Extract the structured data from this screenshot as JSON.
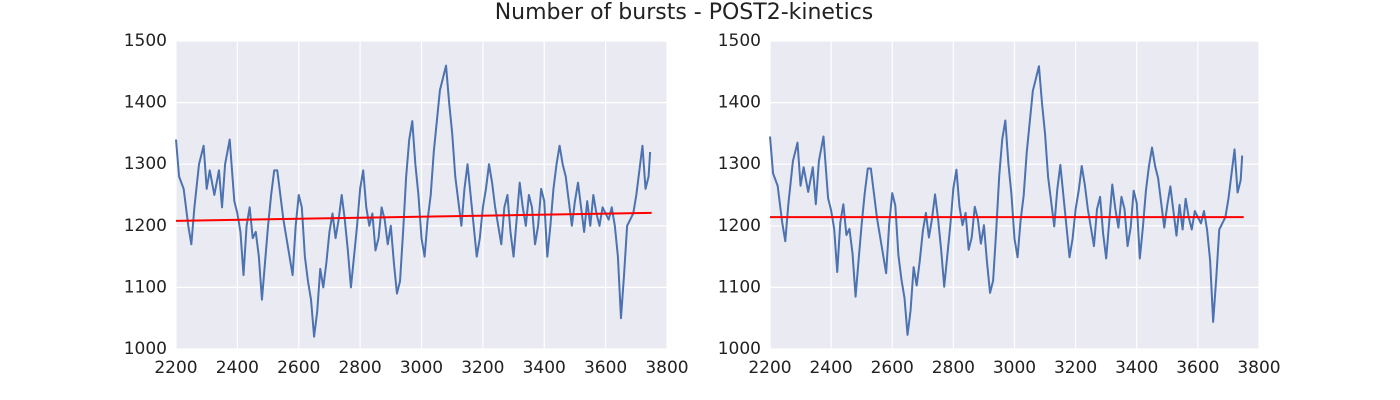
{
  "title": "Number of bursts - POST2-kinetics",
  "chart_data": [
    {
      "type": "line",
      "grid": true,
      "background": "#eaeaf2",
      "xlim": [
        2200,
        3800
      ],
      "ylim": [
        1000,
        1500
      ],
      "xticks": [
        2200,
        2400,
        2600,
        2800,
        3000,
        3200,
        3400,
        3600,
        3800
      ],
      "yticks": [
        1000,
        1100,
        1200,
        1300,
        1400,
        1500
      ],
      "x": [
        2200,
        2210,
        2225,
        2240,
        2250,
        2260,
        2275,
        2290,
        2300,
        2310,
        2325,
        2340,
        2350,
        2360,
        2375,
        2390,
        2400,
        2410,
        2420,
        2430,
        2440,
        2450,
        2460,
        2470,
        2480,
        2490,
        2500,
        2510,
        2520,
        2530,
        2540,
        2550,
        2560,
        2570,
        2580,
        2590,
        2600,
        2610,
        2620,
        2630,
        2640,
        2650,
        2660,
        2670,
        2680,
        2690,
        2700,
        2710,
        2720,
        2730,
        2740,
        2750,
        2760,
        2770,
        2780,
        2790,
        2800,
        2810,
        2820,
        2830,
        2840,
        2850,
        2860,
        2870,
        2880,
        2890,
        2900,
        2910,
        2920,
        2930,
        2940,
        2950,
        2960,
        2970,
        2980,
        2990,
        3000,
        3010,
        3020,
        3030,
        3040,
        3050,
        3060,
        3070,
        3080,
        3090,
        3100,
        3110,
        3120,
        3130,
        3140,
        3150,
        3160,
        3170,
        3180,
        3190,
        3200,
        3210,
        3220,
        3230,
        3240,
        3250,
        3260,
        3270,
        3280,
        3290,
        3300,
        3310,
        3320,
        3330,
        3340,
        3350,
        3360,
        3370,
        3380,
        3390,
        3400,
        3410,
        3420,
        3430,
        3440,
        3450,
        3460,
        3470,
        3480,
        3490,
        3500,
        3510,
        3520,
        3530,
        3540,
        3550,
        3560,
        3570,
        3580,
        3590,
        3600,
        3610,
        3620,
        3630,
        3640,
        3650,
        3660,
        3670,
        3680,
        3690,
        3700,
        3710,
        3720,
        3730,
        3740,
        3745
      ],
      "series": [
        {
          "color": "#4c72b0",
          "values": [
            1340,
            1280,
            1260,
            1200,
            1170,
            1230,
            1300,
            1330,
            1260,
            1290,
            1250,
            1290,
            1230,
            1300,
            1340,
            1240,
            1220,
            1190,
            1120,
            1200,
            1230,
            1180,
            1190,
            1150,
            1080,
            1140,
            1200,
            1250,
            1290,
            1290,
            1250,
            1210,
            1180,
            1150,
            1120,
            1200,
            1250,
            1230,
            1150,
            1110,
            1080,
            1020,
            1060,
            1130,
            1100,
            1140,
            1190,
            1220,
            1180,
            1210,
            1250,
            1210,
            1160,
            1100,
            1150,
            1200,
            1260,
            1290,
            1230,
            1200,
            1220,
            1160,
            1180,
            1230,
            1210,
            1170,
            1200,
            1140,
            1090,
            1110,
            1190,
            1280,
            1340,
            1370,
            1300,
            1250,
            1180,
            1150,
            1210,
            1250,
            1320,
            1370,
            1420,
            1440,
            1460,
            1400,
            1350,
            1280,
            1240,
            1200,
            1260,
            1300,
            1250,
            1200,
            1150,
            1180,
            1230,
            1260,
            1300,
            1270,
            1230,
            1200,
            1170,
            1230,
            1250,
            1190,
            1150,
            1210,
            1270,
            1230,
            1200,
            1250,
            1230,
            1170,
            1200,
            1260,
            1240,
            1150,
            1200,
            1260,
            1300,
            1330,
            1300,
            1280,
            1240,
            1200,
            1240,
            1270,
            1230,
            1190,
            1240,
            1200,
            1250,
            1220,
            1200,
            1230,
            1220,
            1210,
            1230,
            1200,
            1150,
            1050,
            1120,
            1200,
            1210,
            1220,
            1250,
            1290,
            1330,
            1260,
            1280,
            1320
          ]
        }
      ],
      "fit": {
        "color": "#ff0000",
        "x": [
          2200,
          3750
        ],
        "values": [
          1208,
          1221
        ]
      }
    },
    {
      "type": "line",
      "grid": true,
      "background": "#eaeaf2",
      "xlim": [
        2200,
        3800
      ],
      "ylim": [
        1000,
        1500
      ],
      "xticks": [
        2200,
        2400,
        2600,
        2800,
        3000,
        3200,
        3400,
        3600,
        3800
      ],
      "yticks": [
        1000,
        1100,
        1200,
        1300,
        1400,
        1500
      ],
      "x": [
        2200,
        2210,
        2225,
        2240,
        2250,
        2260,
        2275,
        2290,
        2300,
        2310,
        2325,
        2340,
        2350,
        2360,
        2375,
        2390,
        2400,
        2410,
        2420,
        2430,
        2440,
        2450,
        2460,
        2470,
        2480,
        2490,
        2500,
        2510,
        2520,
        2530,
        2540,
        2550,
        2560,
        2570,
        2580,
        2590,
        2600,
        2610,
        2620,
        2630,
        2640,
        2650,
        2660,
        2670,
        2680,
        2690,
        2700,
        2710,
        2720,
        2730,
        2740,
        2750,
        2760,
        2770,
        2780,
        2790,
        2800,
        2810,
        2820,
        2830,
        2840,
        2850,
        2860,
        2870,
        2880,
        2890,
        2900,
        2910,
        2920,
        2930,
        2940,
        2950,
        2960,
        2970,
        2980,
        2990,
        3000,
        3010,
        3020,
        3030,
        3040,
        3050,
        3060,
        3070,
        3080,
        3090,
        3100,
        3110,
        3120,
        3130,
        3140,
        3150,
        3160,
        3170,
        3180,
        3190,
        3200,
        3210,
        3220,
        3230,
        3240,
        3250,
        3260,
        3270,
        3280,
        3290,
        3300,
        3310,
        3320,
        3330,
        3340,
        3350,
        3360,
        3370,
        3380,
        3390,
        3400,
        3410,
        3420,
        3430,
        3440,
        3450,
        3460,
        3470,
        3480,
        3490,
        3500,
        3510,
        3520,
        3530,
        3540,
        3550,
        3560,
        3570,
        3580,
        3590,
        3600,
        3610,
        3620,
        3630,
        3640,
        3650,
        3660,
        3670,
        3680,
        3690,
        3700,
        3710,
        3720,
        3730,
        3740,
        3745
      ],
      "series": [
        {
          "color": "#4c72b0",
          "values": [
            1345,
            1285,
            1265,
            1205,
            1175,
            1235,
            1305,
            1335,
            1265,
            1295,
            1255,
            1295,
            1235,
            1305,
            1345,
            1245,
            1225,
            1195,
            1125,
            1205,
            1235,
            1185,
            1195,
            1155,
            1085,
            1145,
            1203,
            1253,
            1293,
            1293,
            1253,
            1213,
            1183,
            1153,
            1123,
            1203,
            1253,
            1233,
            1153,
            1113,
            1083,
            1023,
            1063,
            1133,
            1103,
            1143,
            1191,
            1221,
            1181,
            1211,
            1251,
            1211,
            1161,
            1101,
            1151,
            1201,
            1261,
            1291,
            1231,
            1201,
            1221,
            1161,
            1181,
            1231,
            1211,
            1171,
            1201,
            1141,
            1091,
            1111,
            1191,
            1281,
            1341,
            1371,
            1301,
            1251,
            1179,
            1149,
            1209,
            1249,
            1319,
            1369,
            1419,
            1439,
            1459,
            1399,
            1349,
            1279,
            1239,
            1199,
            1259,
            1299,
            1249,
            1199,
            1149,
            1179,
            1227,
            1257,
            1297,
            1267,
            1227,
            1197,
            1167,
            1227,
            1247,
            1187,
            1147,
            1207,
            1267,
            1227,
            1197,
            1247,
            1227,
            1167,
            1197,
            1257,
            1237,
            1147,
            1197,
            1257,
            1297,
            1327,
            1297,
            1277,
            1237,
            1197,
            1234,
            1264,
            1224,
            1184,
            1234,
            1194,
            1244,
            1214,
            1194,
            1224,
            1214,
            1204,
            1224,
            1194,
            1144,
            1044,
            1114,
            1194,
            1204,
            1214,
            1244,
            1284,
            1324,
            1254,
            1274,
            1314
          ]
        }
      ],
      "fit": {
        "color": "#ff0000",
        "x": [
          2200,
          3750
        ],
        "values": [
          1214,
          1214
        ]
      }
    }
  ]
}
